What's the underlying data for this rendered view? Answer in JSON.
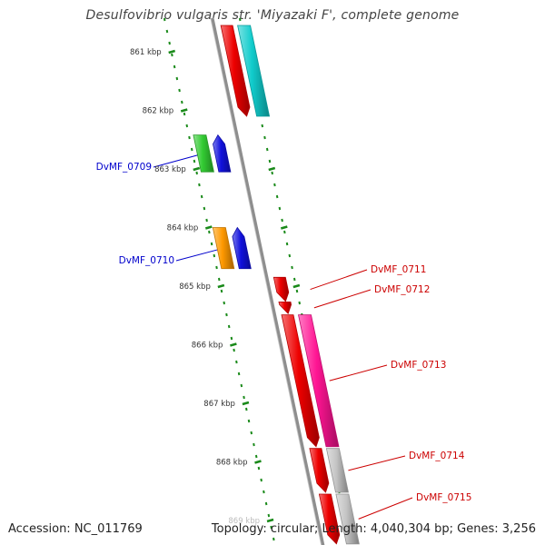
{
  "title": "Desulfovibrio vulgaris str. 'Miyazaki F', complete genome",
  "accession": "Accession: NC_011769",
  "summary": "Topology: circular; Length: 4,040,304 bp; Genes: 3,256",
  "colors": {
    "backbone": "#8e8e8e",
    "tick": "#1a8a1a",
    "label_forward": "#0000cc",
    "label_reverse": "#cc0000",
    "tick_text": "#333333"
  },
  "ruler": {
    "left_ticks": [
      {
        "kbp": 861,
        "label": "861 kbp"
      },
      {
        "kbp": 862,
        "label": "862 kbp"
      },
      {
        "kbp": 863,
        "label": "863 kbp"
      },
      {
        "kbp": 864,
        "label": "864 kbp"
      },
      {
        "kbp": 865,
        "label": "865 kbp"
      },
      {
        "kbp": 866,
        "label": "866 kbp"
      },
      {
        "kbp": 867,
        "label": "867 kbp"
      },
      {
        "kbp": 868,
        "label": "868 kbp"
      },
      {
        "kbp": 869,
        "label": "869 kbp"
      }
    ]
  },
  "features": [
    {
      "name": "",
      "strand": "reverse",
      "track": "cds",
      "color": "#ee0000",
      "start_kbp": 860.55,
      "end_kbp": 862.1
    },
    {
      "name": "",
      "strand": "reverse",
      "track": "gene",
      "color": "#11cccc",
      "start_kbp": 860.55,
      "end_kbp": 862.1
    },
    {
      "name": "DvMF_0709",
      "strand": "forward",
      "track": "cds",
      "color": "#1111dd",
      "start_kbp": 862.42,
      "end_kbp": 863.05
    },
    {
      "name": "",
      "strand": "forward",
      "track": "gene",
      "color": "#33cc33",
      "start_kbp": 862.42,
      "end_kbp": 863.05
    },
    {
      "name": "DvMF_0710",
      "strand": "forward",
      "track": "cds",
      "color": "#1111dd",
      "start_kbp": 864.0,
      "end_kbp": 864.7
    },
    {
      "name": "",
      "strand": "forward",
      "track": "gene",
      "color": "#ff9900",
      "start_kbp": 864.0,
      "end_kbp": 864.7
    },
    {
      "name": "DvMF_0711",
      "strand": "reverse",
      "track": "cds",
      "color": "#ee0000",
      "start_kbp": 864.85,
      "end_kbp": 865.26
    },
    {
      "name": "DvMF_0712",
      "strand": "reverse",
      "track": "cds",
      "color": "#ee0000",
      "start_kbp": 865.27,
      "end_kbp": 865.47
    },
    {
      "name": "DvMF_0713",
      "strand": "reverse",
      "track": "cds",
      "color": "#ee0000",
      "start_kbp": 865.49,
      "end_kbp": 867.74
    },
    {
      "name": "",
      "strand": "reverse",
      "track": "gene",
      "color": "#ff1493",
      "start_kbp": 865.49,
      "end_kbp": 867.74
    },
    {
      "name": "DvMF_0714",
      "strand": "reverse",
      "track": "cds",
      "color": "#ee0000",
      "start_kbp": 867.77,
      "end_kbp": 868.52
    },
    {
      "name": "",
      "strand": "reverse",
      "track": "gene",
      "color": "#c4c4c4",
      "start_kbp": 867.77,
      "end_kbp": 868.52
    },
    {
      "name": "DvMF_0715",
      "strand": "reverse",
      "track": "cds",
      "color": "#ee0000",
      "start_kbp": 868.55,
      "end_kbp": 869.4
    },
    {
      "name": "",
      "strand": "reverse",
      "track": "gene",
      "color": "#c4c4c4",
      "start_kbp": 868.55,
      "end_kbp": 869.4
    }
  ]
}
